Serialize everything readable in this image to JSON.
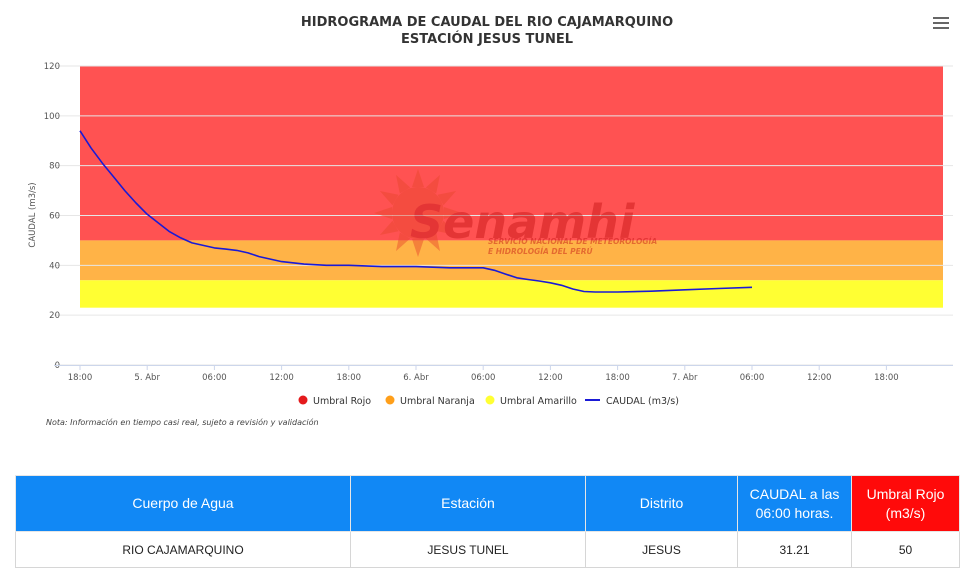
{
  "header": {
    "title_line1": "HIDROGRAMA DE CAUDAL DEL RIO CAJAMARQUINO",
    "title_line2": "ESTACIÓN JESUS TUNEL",
    "menu_icon": "hamburger-menu-icon"
  },
  "watermark": {
    "brand": "Senamhi",
    "subtitle_line1": "SERVICIO NACIONAL DE METEOROLOGÍA",
    "subtitle_line2": "E HIDROLOGÍA DEL PERÚ"
  },
  "chart_data": {
    "type": "line",
    "ylabel": "CAUDAL (m3/s)",
    "ylim": [
      0,
      120
    ],
    "yticks": [
      0,
      20,
      40,
      60,
      80,
      100,
      120
    ],
    "xlim_hours": [
      0,
      78
    ],
    "xticks": [
      "18:00",
      "5. Abr",
      "06:00",
      "12:00",
      "18:00",
      "6. Abr",
      "06:00",
      "12:00",
      "18:00",
      "7. Abr",
      "06:00",
      "12:00",
      "18:00"
    ],
    "bands": [
      {
        "name": "Umbral Rojo",
        "from": 50,
        "to": 120,
        "color": "#ff5252"
      },
      {
        "name": "Umbral Naranja",
        "from": 34,
        "to": 50,
        "color": "#ffb347"
      },
      {
        "name": "Umbral Amarillo",
        "from": 23,
        "to": 34,
        "color": "#ffff33"
      }
    ],
    "series": [
      {
        "name": "CAUDAL (m3/s)",
        "color": "#1a1ad6",
        "x": [
          0,
          1,
          2,
          3,
          4,
          5,
          6,
          7,
          8,
          9,
          10,
          11,
          12,
          13,
          14,
          15,
          16,
          18,
          20,
          22,
          24,
          27,
          30,
          33,
          36,
          37,
          38,
          39,
          40,
          41,
          42,
          43,
          44,
          45,
          46,
          48,
          51,
          54,
          57,
          60
        ],
        "values": [
          94,
          87,
          81,
          75.5,
          70,
          65,
          60.5,
          57,
          53.5,
          51,
          49,
          48,
          47,
          46.5,
          46,
          45,
          43.5,
          41.5,
          40.5,
          40,
          40,
          39.5,
          39.5,
          39,
          39,
          38,
          36.5,
          35,
          34.3,
          33.7,
          33,
          32,
          30.5,
          29.5,
          29.3,
          29.3,
          29.6,
          30.2,
          30.7,
          31.2
        ]
      }
    ],
    "legend": [
      "Umbral Rojo",
      "Umbral Naranja",
      "Umbral Amarillo",
      "CAUDAL (m3/s)"
    ],
    "legend_colors": [
      "#e41a1c",
      "#ff9f1a",
      "#ffff33",
      "#1a1ad6"
    ],
    "legend_position": "bottom"
  },
  "note": "Nota: Información en tiempo casi real, sujeto a revisión y validación",
  "table": {
    "headers": [
      "Cuerpo de Agua",
      "Estación",
      "Distrito",
      "CAUDAL a las 06:00 horas.",
      "Umbral Rojo (m3/s)"
    ],
    "row": [
      "RIO CAJAMARQUINO",
      "JESUS TUNEL",
      "JESUS",
      "31.21",
      "50"
    ]
  }
}
